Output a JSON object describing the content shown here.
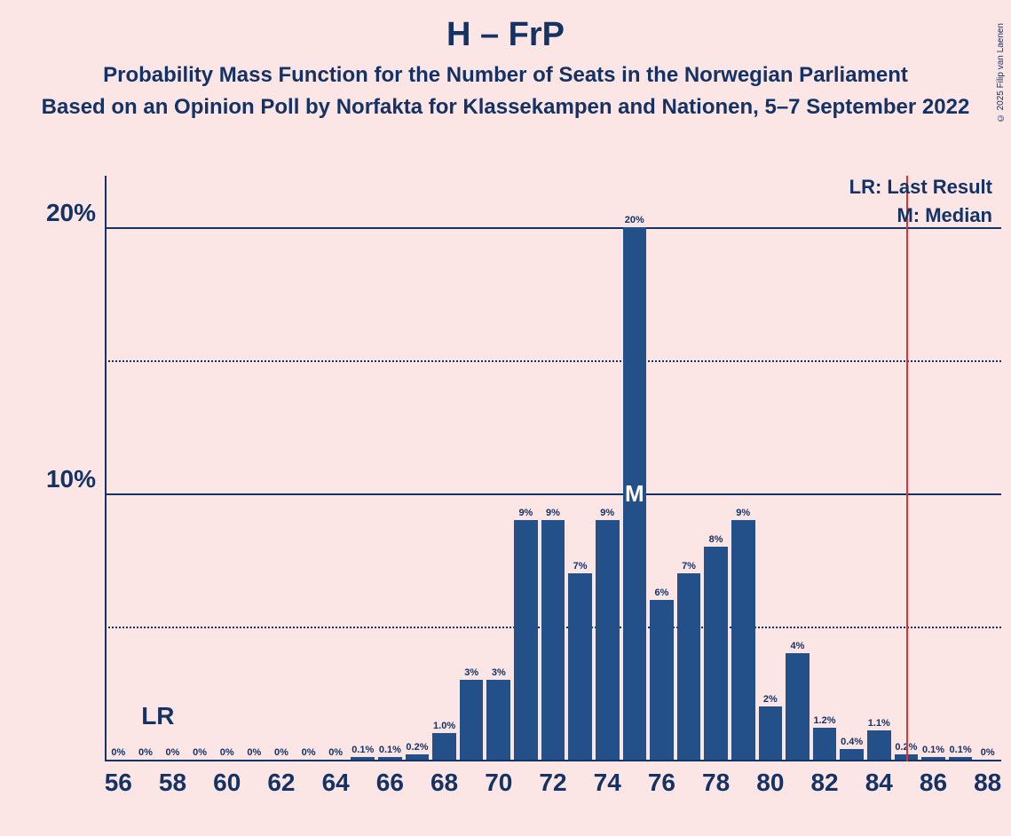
{
  "title": "H – FrP",
  "subtitle": "Probability Mass Function for the Number of Seats in the Norwegian Parliament",
  "subtitle2": "Based on an Opinion Poll by Norfakta for Klassekampen and Nationen, 5–7 September 2022",
  "copyright": "© 2025 Filip van Laenen",
  "legend": {
    "lr": "LR: Last Result",
    "m": "M: Median"
  },
  "lr_label": "LR",
  "m_label": "M",
  "chart": {
    "type": "bar",
    "background_color": "#fce5e5",
    "bar_color": "#235089",
    "text_color": "#143264",
    "median_line_color": "#e03030",
    "x_start": 56,
    "x_end": 88,
    "x_tick_step": 2,
    "y_max_pct": 22,
    "y_ticks": [
      {
        "value": 20,
        "label": "20%",
        "style": "solid"
      },
      {
        "value": 15,
        "label": "",
        "style": "dotted"
      },
      {
        "value": 10,
        "label": "10%",
        "style": "solid"
      },
      {
        "value": 5,
        "label": "",
        "style": "dotted"
      }
    ],
    "bar_width_ratio": 0.87,
    "median_x": 75,
    "last_result_x": 85,
    "lr_marker_x": 57.5,
    "data": [
      {
        "x": 56,
        "v": 0,
        "label": "0%"
      },
      {
        "x": 57,
        "v": 0,
        "label": "0%"
      },
      {
        "x": 58,
        "v": 0,
        "label": "0%"
      },
      {
        "x": 59,
        "v": 0,
        "label": "0%"
      },
      {
        "x": 60,
        "v": 0,
        "label": "0%"
      },
      {
        "x": 61,
        "v": 0,
        "label": "0%"
      },
      {
        "x": 62,
        "v": 0,
        "label": "0%"
      },
      {
        "x": 63,
        "v": 0,
        "label": "0%"
      },
      {
        "x": 64,
        "v": 0,
        "label": "0%"
      },
      {
        "x": 65,
        "v": 0.1,
        "label": "0.1%"
      },
      {
        "x": 66,
        "v": 0.1,
        "label": "0.1%"
      },
      {
        "x": 67,
        "v": 0.2,
        "label": "0.2%"
      },
      {
        "x": 68,
        "v": 1.0,
        "label": "1.0%"
      },
      {
        "x": 69,
        "v": 3,
        "label": "3%"
      },
      {
        "x": 70,
        "v": 3,
        "label": "3%"
      },
      {
        "x": 71,
        "v": 9,
        "label": "9%"
      },
      {
        "x": 72,
        "v": 9,
        "label": "9%"
      },
      {
        "x": 73,
        "v": 7,
        "label": "7%"
      },
      {
        "x": 74,
        "v": 9,
        "label": "9%"
      },
      {
        "x": 75,
        "v": 20,
        "label": "20%"
      },
      {
        "x": 76,
        "v": 6,
        "label": "6%"
      },
      {
        "x": 77,
        "v": 7,
        "label": "7%"
      },
      {
        "x": 78,
        "v": 8,
        "label": "8%"
      },
      {
        "x": 79,
        "v": 9,
        "label": "9%"
      },
      {
        "x": 80,
        "v": 2,
        "label": "2%"
      },
      {
        "x": 81,
        "v": 4,
        "label": "4%"
      },
      {
        "x": 82,
        "v": 1.2,
        "label": "1.2%"
      },
      {
        "x": 83,
        "v": 0.4,
        "label": "0.4%"
      },
      {
        "x": 84,
        "v": 1.1,
        "label": "1.1%"
      },
      {
        "x": 85,
        "v": 0.2,
        "label": "0.2%"
      },
      {
        "x": 86,
        "v": 0.1,
        "label": "0.1%"
      },
      {
        "x": 87,
        "v": 0.1,
        "label": "0.1%"
      },
      {
        "x": 88,
        "v": 0,
        "label": "0%"
      }
    ]
  }
}
